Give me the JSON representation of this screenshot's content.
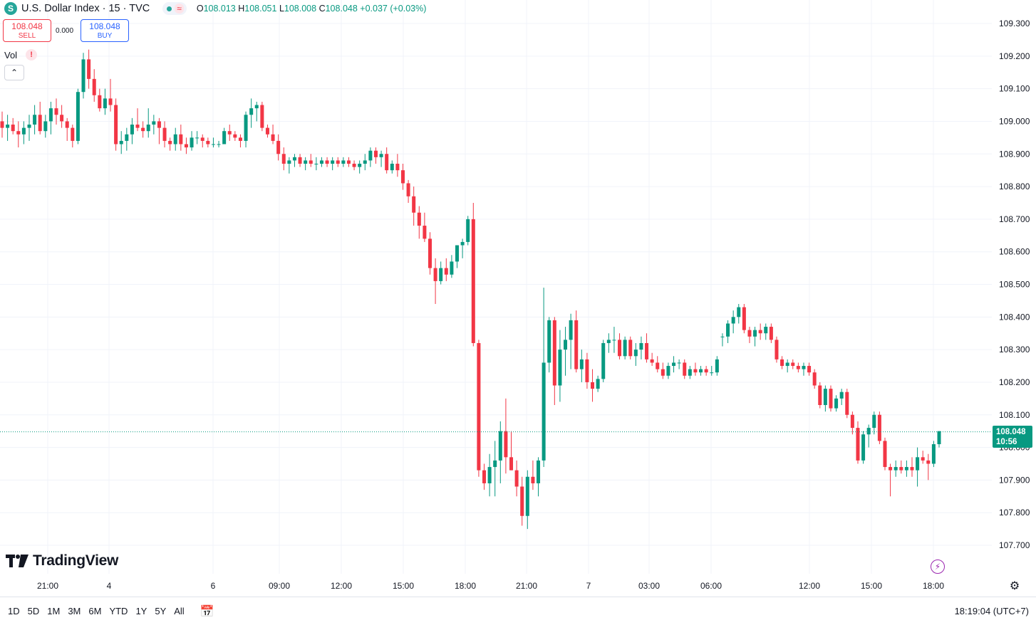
{
  "header": {
    "symbol_icon": "S",
    "title": "U.S. Dollar Index · 15 · TVC",
    "status_wave": "≈",
    "ohlc": {
      "o_label": "O",
      "o": "108.013",
      "h_label": "H",
      "h": "108.051",
      "l_label": "L",
      "l": "108.008",
      "c_label": "C",
      "c": "108.048",
      "change": "+0.037 (+0.03%)"
    }
  },
  "trade": {
    "sell_price": "108.048",
    "sell_label": "SELL",
    "spread": "0.000",
    "buy_price": "108.048",
    "buy_label": "BUY"
  },
  "indicator": {
    "label": "Vol",
    "warning": "!"
  },
  "logo": "TradingView",
  "last_price": {
    "price": "108.048",
    "countdown": "10:56"
  },
  "range_buttons": [
    "1D",
    "5D",
    "1M",
    "3M",
    "6M",
    "YTD",
    "1Y",
    "5Y",
    "All"
  ],
  "clock": "18:19:04 (UTC+7)",
  "colors": {
    "up": "#089981",
    "down": "#f23645",
    "grid": "#f0f3fa",
    "last_line": "#089981"
  },
  "chart_data": {
    "type": "candlestick",
    "y_axis_labels": [
      "109.300",
      "109.200",
      "109.100",
      "109.000",
      "108.900",
      "108.800",
      "108.700",
      "108.600",
      "108.500",
      "108.400",
      "108.300",
      "108.200",
      "108.100",
      "108.000",
      "107.900",
      "107.800",
      "107.700"
    ],
    "ylim": [
      107.67,
      109.33
    ],
    "x_axis_labels": [
      "21:00",
      "4",
      "6",
      "09:00",
      "12:00",
      "15:00",
      "18:00",
      "21:00",
      "7",
      "03:00",
      "06:00",
      "12:00",
      "15:00",
      "18:00"
    ],
    "last_price": 108.048,
    "candles": [
      [
        109.0,
        109.03,
        108.95,
        108.98
      ],
      [
        108.98,
        109.02,
        108.94,
        108.99
      ],
      [
        108.99,
        109.01,
        108.96,
        108.97
      ],
      [
        108.97,
        109.0,
        108.92,
        108.96
      ],
      [
        108.96,
        109.0,
        108.93,
        108.98
      ],
      [
        108.98,
        109.02,
        108.94,
        108.99
      ],
      [
        108.99,
        109.05,
        108.96,
        109.02
      ],
      [
        109.02,
        109.06,
        108.96,
        108.97
      ],
      [
        108.97,
        109.02,
        108.95,
        109.0
      ],
      [
        109.0,
        109.06,
        108.96,
        109.04
      ],
      [
        109.04,
        109.07,
        108.99,
        109.02
      ],
      [
        109.02,
        109.05,
        108.98,
        109.0
      ],
      [
        109.0,
        109.01,
        108.94,
        108.98
      ],
      [
        108.98,
        108.99,
        108.92,
        108.94
      ],
      [
        108.94,
        109.1,
        108.93,
        109.09
      ],
      [
        109.09,
        109.21,
        109.07,
        109.19
      ],
      [
        109.19,
        109.22,
        109.1,
        109.13
      ],
      [
        109.13,
        109.16,
        109.06,
        109.08
      ],
      [
        109.08,
        109.1,
        109.03,
        109.04
      ],
      [
        109.04,
        109.1,
        109.02,
        109.07
      ],
      [
        109.07,
        109.13,
        109.03,
        109.05
      ],
      [
        109.05,
        109.07,
        108.91,
        108.93
      ],
      [
        108.93,
        108.97,
        108.9,
        108.94
      ],
      [
        108.94,
        108.98,
        108.91,
        108.96
      ],
      [
        108.96,
        109.01,
        108.93,
        108.99
      ],
      [
        108.99,
        109.04,
        108.97,
        108.98
      ],
      [
        108.98,
        109.0,
        108.95,
        108.97
      ],
      [
        108.97,
        109.04,
        108.95,
        108.99
      ],
      [
        108.99,
        109.02,
        108.96,
        109.0
      ],
      [
        109.0,
        109.01,
        108.93,
        108.98
      ],
      [
        108.98,
        109.0,
        108.92,
        108.94
      ],
      [
        108.94,
        108.95,
        108.91,
        108.93
      ],
      [
        108.93,
        108.98,
        108.91,
        108.96
      ],
      [
        108.96,
        108.99,
        108.91,
        108.93
      ],
      [
        108.93,
        108.95,
        108.9,
        108.92
      ],
      [
        108.92,
        108.97,
        108.91,
        108.95
      ],
      [
        108.95,
        108.97,
        108.93,
        108.95
      ],
      [
        108.95,
        108.96,
        108.92,
        108.94
      ],
      [
        108.94,
        108.95,
        108.92,
        108.93
      ],
      [
        108.93,
        108.95,
        108.92,
        108.93
      ],
      [
        108.93,
        108.94,
        108.92,
        108.93
      ],
      [
        108.93,
        108.98,
        108.93,
        108.97
      ],
      [
        108.97,
        108.99,
        108.94,
        108.96
      ],
      [
        108.96,
        108.97,
        108.94,
        108.95
      ],
      [
        108.95,
        108.96,
        108.92,
        108.94
      ],
      [
        108.94,
        109.03,
        108.92,
        109.02
      ],
      [
        109.02,
        109.07,
        108.98,
        109.04
      ],
      [
        109.04,
        109.06,
        109.0,
        109.05
      ],
      [
        109.05,
        109.06,
        108.97,
        108.98
      ],
      [
        108.98,
        108.99,
        108.95,
        108.96
      ],
      [
        108.96,
        108.99,
        108.93,
        108.94
      ],
      [
        108.94,
        108.96,
        108.88,
        108.9
      ],
      [
        108.9,
        108.92,
        108.85,
        108.87
      ],
      [
        108.87,
        108.89,
        108.84,
        108.88
      ],
      [
        108.88,
        108.9,
        108.86,
        108.89
      ],
      [
        108.89,
        108.9,
        108.86,
        108.87
      ],
      [
        108.87,
        108.89,
        108.85,
        108.88
      ],
      [
        108.88,
        108.9,
        108.86,
        108.87
      ],
      [
        108.87,
        108.89,
        108.85,
        108.87
      ],
      [
        108.87,
        108.89,
        108.86,
        108.88
      ],
      [
        108.88,
        108.89,
        108.86,
        108.87
      ],
      [
        108.87,
        108.89,
        108.85,
        108.88
      ],
      [
        108.88,
        108.89,
        108.86,
        108.87
      ],
      [
        108.87,
        108.89,
        108.86,
        108.88
      ],
      [
        108.88,
        108.89,
        108.86,
        108.87
      ],
      [
        108.87,
        108.88,
        108.85,
        108.86
      ],
      [
        108.86,
        108.88,
        108.84,
        108.87
      ],
      [
        108.87,
        108.9,
        108.85,
        108.88
      ],
      [
        108.88,
        108.92,
        108.86,
        108.91
      ],
      [
        108.91,
        108.92,
        108.87,
        108.89
      ],
      [
        108.89,
        108.91,
        108.86,
        108.9
      ],
      [
        108.9,
        108.92,
        108.84,
        108.85
      ],
      [
        108.85,
        108.88,
        108.84,
        108.87
      ],
      [
        108.87,
        108.9,
        108.83,
        108.85
      ],
      [
        108.85,
        108.87,
        108.79,
        108.81
      ],
      [
        108.81,
        108.82,
        108.75,
        108.77
      ],
      [
        108.77,
        108.8,
        108.68,
        108.72
      ],
      [
        108.72,
        108.74,
        108.64,
        108.68
      ],
      [
        108.68,
        108.72,
        108.63,
        108.64
      ],
      [
        108.64,
        108.66,
        108.53,
        108.55
      ],
      [
        108.55,
        108.58,
        108.44,
        108.51
      ],
      [
        108.51,
        108.57,
        108.5,
        108.55
      ],
      [
        108.55,
        108.58,
        108.51,
        108.53
      ],
      [
        108.53,
        108.59,
        108.52,
        108.57
      ],
      [
        108.57,
        108.62,
        108.55,
        108.62
      ],
      [
        108.62,
        108.64,
        108.58,
        108.63
      ],
      [
        108.63,
        108.71,
        108.62,
        108.7
      ],
      [
        108.7,
        108.75,
        108.31,
        108.32
      ],
      [
        108.32,
        108.33,
        107.91,
        107.93
      ],
      [
        107.93,
        107.95,
        107.87,
        107.89
      ],
      [
        107.89,
        107.98,
        107.85,
        107.94
      ],
      [
        107.94,
        108.02,
        107.85,
        107.96
      ],
      [
        107.96,
        108.08,
        107.89,
        108.05
      ],
      [
        108.05,
        108.15,
        107.92,
        107.97
      ],
      [
        107.97,
        108.05,
        107.93,
        107.93
      ],
      [
        107.93,
        107.96,
        107.85,
        107.88
      ],
      [
        107.88,
        107.91,
        107.76,
        107.79
      ],
      [
        107.79,
        107.93,
        107.75,
        107.91
      ],
      [
        107.91,
        107.96,
        107.87,
        107.89
      ],
      [
        107.89,
        107.97,
        107.85,
        107.96
      ],
      [
        107.96,
        108.49,
        107.94,
        108.26
      ],
      [
        108.26,
        108.4,
        108.23,
        108.39
      ],
      [
        108.39,
        108.4,
        108.13,
        108.19
      ],
      [
        108.19,
        108.36,
        108.14,
        108.3
      ],
      [
        108.3,
        108.37,
        108.22,
        108.33
      ],
      [
        108.33,
        108.41,
        108.24,
        108.39
      ],
      [
        108.39,
        108.42,
        108.23,
        108.24
      ],
      [
        108.24,
        108.3,
        108.2,
        108.27
      ],
      [
        108.27,
        108.29,
        108.18,
        108.2
      ],
      [
        108.2,
        108.24,
        108.14,
        108.18
      ],
      [
        108.18,
        108.22,
        108.17,
        108.21
      ],
      [
        108.21,
        108.33,
        108.2,
        108.32
      ],
      [
        108.32,
        108.35,
        108.29,
        108.33
      ],
      [
        108.33,
        108.37,
        108.29,
        108.33
      ],
      [
        108.33,
        108.35,
        108.27,
        108.28
      ],
      [
        108.28,
        108.34,
        108.27,
        108.33
      ],
      [
        108.33,
        108.34,
        108.27,
        108.28
      ],
      [
        108.28,
        108.32,
        108.25,
        108.3
      ],
      [
        108.3,
        108.34,
        108.27,
        108.32
      ],
      [
        108.32,
        108.35,
        108.26,
        108.27
      ],
      [
        108.27,
        108.29,
        108.25,
        108.26
      ],
      [
        108.26,
        108.28,
        108.23,
        108.24
      ],
      [
        108.24,
        108.26,
        108.21,
        108.22
      ],
      [
        108.22,
        108.26,
        108.21,
        108.25
      ],
      [
        108.25,
        108.28,
        108.23,
        108.26
      ],
      [
        108.26,
        108.27,
        108.24,
        108.26
      ],
      [
        108.26,
        108.27,
        108.21,
        108.22
      ],
      [
        108.22,
        108.25,
        108.21,
        108.24
      ],
      [
        108.24,
        108.26,
        108.22,
        108.23
      ],
      [
        108.23,
        108.25,
        108.22,
        108.24
      ],
      [
        108.24,
        108.25,
        108.22,
        108.23
      ],
      [
        108.23,
        108.25,
        108.22,
        108.23
      ],
      [
        108.23,
        108.28,
        108.22,
        108.27
      ],
      [
        108.34,
        108.35,
        108.31,
        108.34
      ],
      [
        108.34,
        108.39,
        108.32,
        108.38
      ],
      [
        108.38,
        108.42,
        108.35,
        108.4
      ],
      [
        108.4,
        108.44,
        108.38,
        108.43
      ],
      [
        108.43,
        108.44,
        108.35,
        108.36
      ],
      [
        108.36,
        108.37,
        108.32,
        108.34
      ],
      [
        108.34,
        108.37,
        108.31,
        108.36
      ],
      [
        108.36,
        108.38,
        108.33,
        108.35
      ],
      [
        108.35,
        108.38,
        108.33,
        108.37
      ],
      [
        108.37,
        108.38,
        108.32,
        108.33
      ],
      [
        108.33,
        108.34,
        108.26,
        108.27
      ],
      [
        108.27,
        108.28,
        108.24,
        108.25
      ],
      [
        108.25,
        108.27,
        108.23,
        108.26
      ],
      [
        108.26,
        108.27,
        108.24,
        108.25
      ],
      [
        108.25,
        108.26,
        108.23,
        108.24
      ],
      [
        108.24,
        108.26,
        108.22,
        108.25
      ],
      [
        108.25,
        108.26,
        108.22,
        108.23
      ],
      [
        108.23,
        108.24,
        108.18,
        108.19
      ],
      [
        108.19,
        108.2,
        108.12,
        108.13
      ],
      [
        108.13,
        108.19,
        108.11,
        108.18
      ],
      [
        108.18,
        108.19,
        108.11,
        108.12
      ],
      [
        108.12,
        108.16,
        108.11,
        108.15
      ],
      [
        108.15,
        108.18,
        108.13,
        108.17
      ],
      [
        108.17,
        108.18,
        108.09,
        108.1
      ],
      [
        108.1,
        108.11,
        108.04,
        108.06
      ],
      [
        108.06,
        108.08,
        107.95,
        107.96
      ],
      [
        107.96,
        108.05,
        107.95,
        108.04
      ],
      [
        108.04,
        108.07,
        108.0,
        108.06
      ],
      [
        108.06,
        108.11,
        108.04,
        108.1
      ],
      [
        108.1,
        108.11,
        108.01,
        108.02
      ],
      [
        108.02,
        108.03,
        107.93,
        107.94
      ],
      [
        107.94,
        107.95,
        107.85,
        107.93
      ],
      [
        107.93,
        107.96,
        107.91,
        107.94
      ],
      [
        107.94,
        107.96,
        107.92,
        107.93
      ],
      [
        107.93,
        107.96,
        107.91,
        107.94
      ],
      [
        107.94,
        107.97,
        107.91,
        107.93
      ],
      [
        107.93,
        108.0,
        107.88,
        107.97
      ],
      [
        107.97,
        107.99,
        107.95,
        107.96
      ],
      [
        107.96,
        107.98,
        107.9,
        107.95
      ],
      [
        107.95,
        108.02,
        107.94,
        108.01
      ],
      [
        108.01,
        108.05,
        108.0,
        108.05
      ]
    ]
  }
}
